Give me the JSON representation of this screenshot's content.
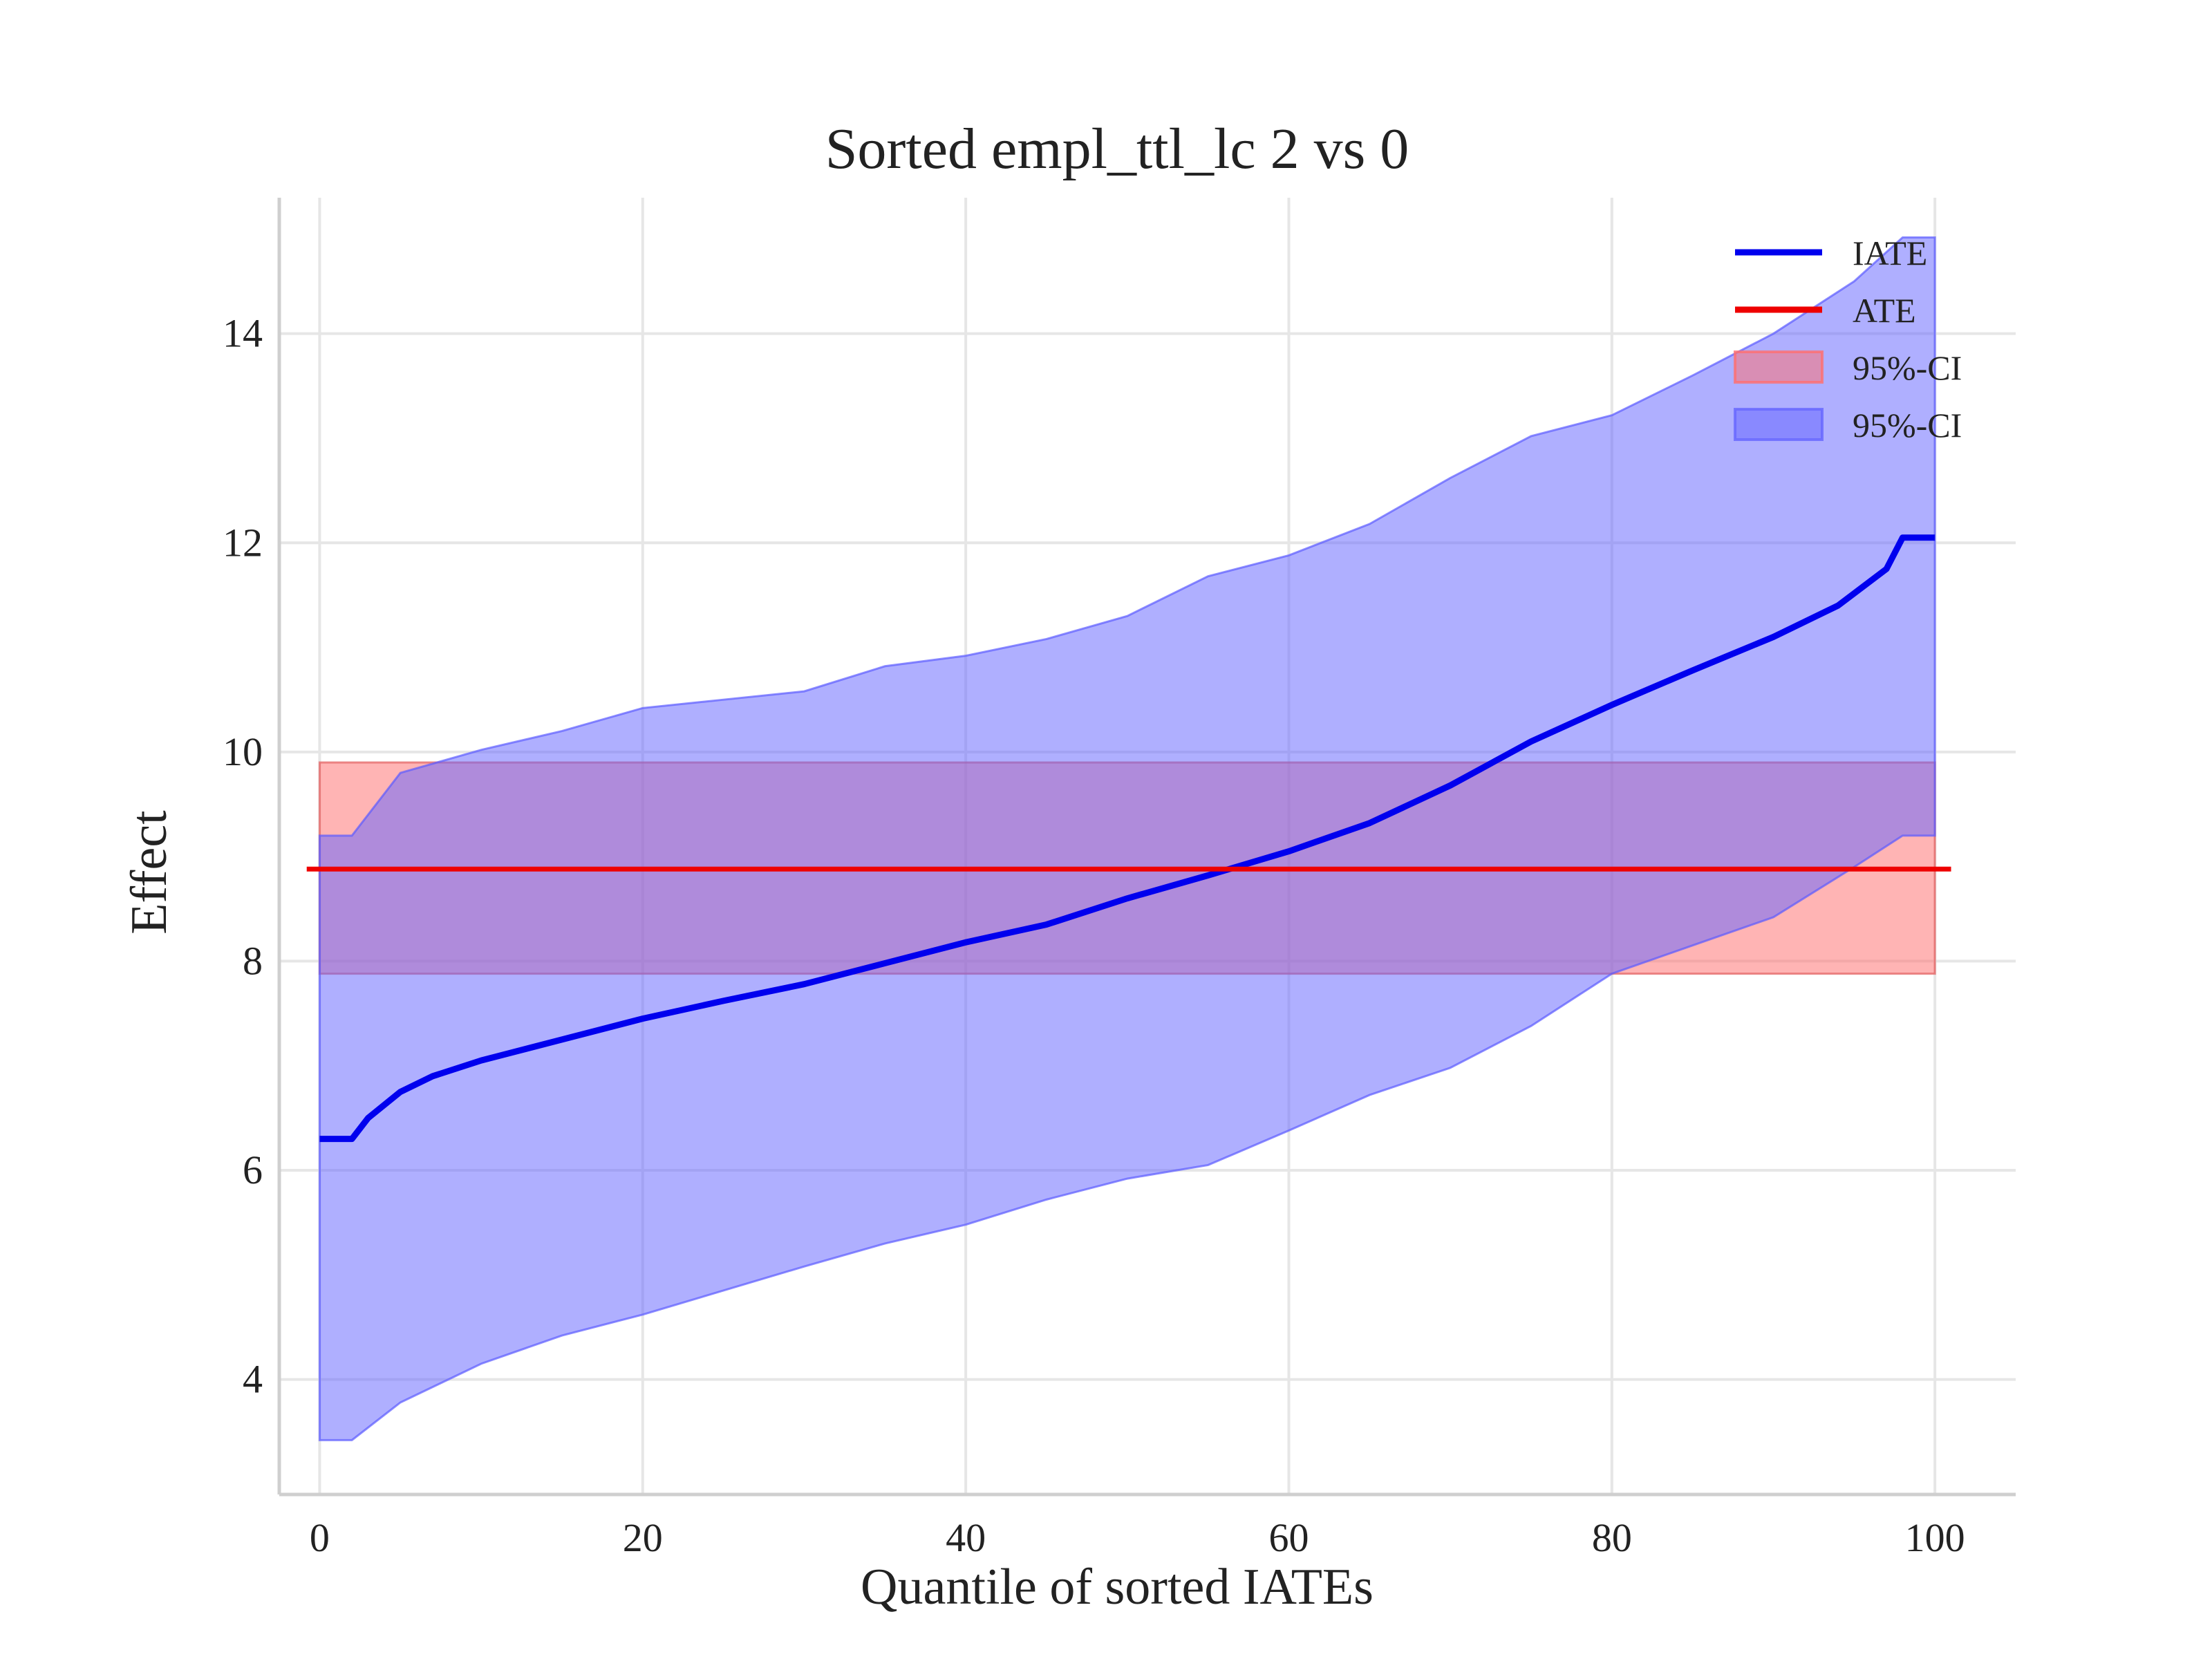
{
  "chart_data": {
    "type": "line",
    "title": "Sorted empl_ttl_lc 2 vs 0",
    "xlabel": "Quantile of sorted IATEs",
    "ylabel": "Effect",
    "xlim": [
      -2.5,
      105
    ],
    "ylim": [
      2.9,
      15.3
    ],
    "grid": true,
    "legend_placement": "top-right",
    "x_ticks": [
      0,
      20,
      40,
      60,
      80,
      100
    ],
    "y_ticks": [
      4,
      6,
      8,
      10,
      12,
      14
    ],
    "x_tick_labels": [
      "0",
      "20",
      "40",
      "60",
      "80",
      "100"
    ],
    "y_tick_labels": [
      "4",
      "6",
      "8",
      "10",
      "12",
      "14"
    ],
    "colors": {
      "iate": "#0000ee",
      "ate": "#ee0000",
      "iate_ci_fill": "#6666ff",
      "ate_ci_fill": "#ff6f6f",
      "grid": "#e6e6e6",
      "axis": "#cfcfcf"
    },
    "series": [
      {
        "name": "IATE",
        "x": [
          0,
          2,
          3,
          5,
          7,
          10,
          15,
          20,
          25,
          30,
          35,
          40,
          45,
          50,
          55,
          60,
          65,
          70,
          75,
          80,
          85,
          90,
          94,
          97,
          98,
          100
        ],
        "y": [
          6.3,
          6.3,
          6.5,
          6.75,
          6.9,
          7.05,
          7.25,
          7.45,
          7.62,
          7.78,
          7.98,
          8.18,
          8.35,
          8.6,
          8.82,
          9.05,
          9.32,
          9.68,
          10.1,
          10.45,
          10.78,
          11.1,
          11.4,
          11.75,
          12.05,
          12.05
        ]
      },
      {
        "name": "ATE",
        "x": [
          -0.8,
          101
        ],
        "y": [
          8.88,
          8.88
        ]
      }
    ],
    "bands": [
      {
        "name": "95%-CI",
        "kind": "ATE",
        "x": [
          0,
          100
        ],
        "lower": [
          7.88,
          7.88
        ],
        "upper": [
          9.9,
          9.9
        ]
      },
      {
        "name": "95%-CI",
        "kind": "IATE",
        "x": [
          0,
          2,
          5,
          10,
          15,
          20,
          25,
          30,
          35,
          40,
          45,
          50,
          55,
          60,
          65,
          70,
          75,
          80,
          85,
          90,
          95,
          98,
          100
        ],
        "lower": [
          3.42,
          3.42,
          3.78,
          4.15,
          4.42,
          4.62,
          4.85,
          5.08,
          5.3,
          5.48,
          5.72,
          5.92,
          6.05,
          6.38,
          6.72,
          6.98,
          7.38,
          7.88,
          8.15,
          8.42,
          8.9,
          9.2,
          9.2
        ],
        "upper": [
          9.2,
          9.2,
          9.8,
          10.02,
          10.2,
          10.42,
          10.5,
          10.58,
          10.82,
          10.92,
          11.08,
          11.3,
          11.68,
          11.88,
          12.18,
          12.62,
          13.02,
          13.22,
          13.6,
          14.0,
          14.5,
          14.92,
          14.92
        ]
      }
    ],
    "legend": [
      {
        "label": "IATE",
        "kind": "line",
        "color": "#0000ee"
      },
      {
        "label": "ATE",
        "kind": "line",
        "color": "#ee0000"
      },
      {
        "label": "95%-CI",
        "kind": "patch",
        "color": "#ff6f6f"
      },
      {
        "label": "95%-CI",
        "kind": "patch",
        "color": "#6666ff"
      }
    ]
  }
}
